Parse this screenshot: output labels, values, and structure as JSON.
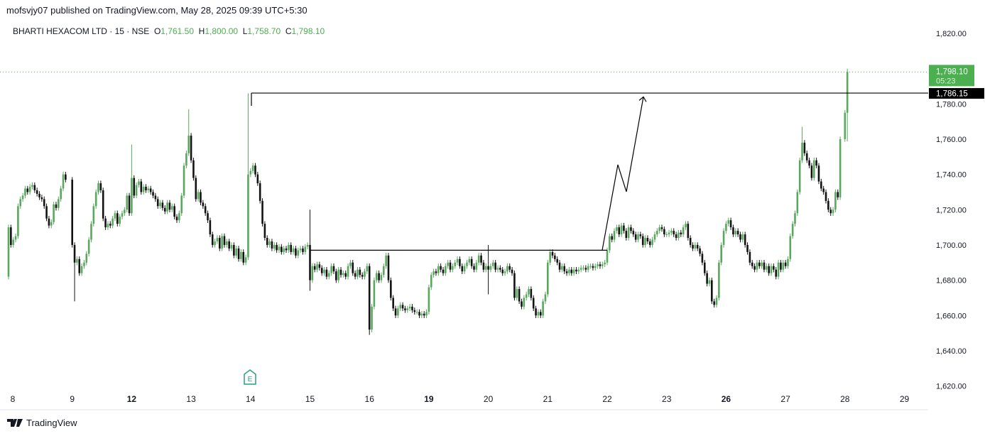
{
  "header": {
    "published": "mofsvjy07 published on TradingView.com, May 28, 2025 09:39 UTC+5:30"
  },
  "legend": {
    "symbol": "BHARTI HEXACOM LTD · 15 · NSE",
    "o_label": "O",
    "o": "1,761.50",
    "h_label": "H",
    "h": "1,800.00",
    "l_label": "L",
    "l": "1,758.70",
    "c_label": "C",
    "c": "1,798.10"
  },
  "footer": {
    "brand": "TradingView"
  },
  "colors": {
    "up": "#5aa85e",
    "down": "#131313",
    "last_price": "#4caf50"
  },
  "chart_data": {
    "type": "candlestick",
    "interval": "15",
    "yticks": [
      1620,
      1640,
      1660,
      1680,
      1700,
      1720,
      1740,
      1760,
      1780,
      1800,
      1820
    ],
    "ytick_labels": [
      "1,620.00",
      "1,640.00",
      "1,660.00",
      "1,680.00",
      "1,700.00",
      "1,720.00",
      "1,740.00",
      "1,760.00",
      "1,780.00",
      "1,800.00",
      "1,820.00"
    ],
    "ylim": [
      1620,
      1825
    ],
    "x_labels": [
      {
        "t": "8",
        "bold": false
      },
      {
        "t": "9",
        "bold": false
      },
      {
        "t": "12",
        "bold": true
      },
      {
        "t": "13",
        "bold": false
      },
      {
        "t": "14",
        "bold": false
      },
      {
        "t": "15",
        "bold": false
      },
      {
        "t": "16",
        "bold": false
      },
      {
        "t": "19",
        "bold": true
      },
      {
        "t": "20",
        "bold": false
      },
      {
        "t": "21",
        "bold": false
      },
      {
        "t": "22",
        "bold": false
      },
      {
        "t": "23",
        "bold": false
      },
      {
        "t": "26",
        "bold": true
      },
      {
        "t": "27",
        "bold": false
      },
      {
        "t": "28",
        "bold": false
      },
      {
        "t": "29",
        "bold": false
      }
    ],
    "first_open": 1682,
    "days_closes": [
      [
        1710,
        1700,
        1703,
        1705,
        1722,
        1726,
        1728,
        1732,
        1730,
        1733,
        1734,
        1731,
        1729,
        1727,
        1726,
        1722,
        1715,
        1711,
        1713,
        1723,
        1721,
        1726,
        1732,
        1740,
        1737
      ],
      [
        1700,
        1690,
        1692,
        1684,
        1688,
        1690,
        1695,
        1703,
        1712,
        1722,
        1730,
        1735,
        1731,
        1715,
        1710,
        1712,
        1711,
        1715,
        1718,
        1712,
        1716,
        1718,
        1720,
        1728,
        1718
      ],
      [
        1738,
        1728,
        1734,
        1736,
        1730,
        1733,
        1731,
        1732,
        1730,
        1728,
        1726,
        1722,
        1724,
        1721,
        1719,
        1724,
        1720,
        1722,
        1716,
        1714,
        1718,
        1728,
        1745,
        1752,
        1762
      ],
      [
        1748,
        1738,
        1726,
        1730,
        1724,
        1722,
        1718,
        1714,
        1706,
        1700,
        1702,
        1704,
        1698,
        1705,
        1700,
        1702,
        1698,
        1700,
        1694,
        1698,
        1692,
        1696,
        1690,
        1693,
        1740
      ],
      [
        1742,
        1745,
        1740,
        1735,
        1725,
        1712,
        1704,
        1700,
        1702,
        1698,
        1700,
        1697,
        1699,
        1696,
        1698,
        1697,
        1700,
        1696,
        1698,
        1694,
        1697,
        1698,
        1696,
        1699,
        1700
      ],
      [
        1680,
        1688,
        1686,
        1689,
        1687,
        1684,
        1686,
        1682,
        1684,
        1688,
        1685,
        1680,
        1686,
        1683,
        1684,
        1682,
        1688,
        1690,
        1684,
        1682,
        1686,
        1683,
        1682,
        1685,
        1688
      ],
      [
        1652,
        1665,
        1680,
        1684,
        1680,
        1683,
        1688,
        1694,
        1680,
        1670,
        1664,
        1660,
        1664,
        1666,
        1664,
        1663,
        1664,
        1665,
        1663,
        1662,
        1662,
        1660,
        1661,
        1660,
        1662
      ],
      [
        1676,
        1683,
        1685,
        1684,
        1688,
        1686,
        1684,
        1688,
        1690,
        1686,
        1688,
        1690,
        1692,
        1688,
        1685,
        1688,
        1690,
        1692,
        1688,
        1686,
        1690,
        1694,
        1690,
        1686,
        1688
      ],
      [
        1686,
        1688,
        1690,
        1686,
        1687,
        1686,
        1684,
        1685,
        1688,
        1686,
        1684,
        1670,
        1675,
        1668,
        1665,
        1670,
        1672,
        1675,
        1670,
        1664,
        1660,
        1662,
        1660,
        1668,
        1672
      ],
      [
        1690,
        1696,
        1694,
        1692,
        1690,
        1686,
        1688,
        1685,
        1684,
        1686,
        1684,
        1686,
        1685,
        1686,
        1687,
        1687,
        1686,
        1688,
        1688,
        1687,
        1688,
        1689,
        1688,
        1689,
        1690
      ],
      [
        1697,
        1705,
        1703,
        1708,
        1710,
        1706,
        1711,
        1708,
        1704,
        1710,
        1708,
        1706,
        1703,
        1706,
        1705,
        1700,
        1704,
        1702,
        1700,
        1703,
        1706,
        1708,
        1710,
        1709,
        1706
      ],
      [
        1706,
        1707,
        1708,
        1706,
        1704,
        1707,
        1706,
        1710,
        1712,
        1704,
        1700,
        1698,
        1700,
        1698,
        1695,
        1690,
        1684,
        1678,
        1680,
        1668,
        1666,
        1670,
        1690,
        1700,
        1708
      ],
      [
        1712,
        1714,
        1710,
        1706,
        1708,
        1706,
        1703,
        1706,
        1700,
        1696,
        1690,
        1688,
        1686,
        1690,
        1688,
        1690,
        1686,
        1688,
        1684,
        1688,
        1686,
        1682,
        1690,
        1686,
        1690
      ],
      [
        1688,
        1692,
        1705,
        1712,
        1718,
        1730,
        1748,
        1758,
        1752,
        1748,
        1745,
        1738,
        1748,
        1745,
        1736,
        1732,
        1730,
        1725,
        1720,
        1718,
        1720,
        1730,
        1727,
        1760
      ],
      [
        1775,
        1798.1
      ]
    ],
    "spikes": [
      {
        "day": 3,
        "i": 24,
        "high": 1786
      },
      {
        "day": 2,
        "i": 24,
        "high": 1777
      },
      {
        "day": 2,
        "i": 0,
        "high": 1757
      },
      {
        "day": 1,
        "i": 1,
        "low": 1668
      },
      {
        "day": 5,
        "i": 0,
        "high": 1720,
        "low": 1674
      },
      {
        "day": 6,
        "i": 0,
        "low": 1649
      },
      {
        "day": 8,
        "i": 0,
        "high": 1700,
        "low": 1672
      },
      {
        "day": 13,
        "i": 7,
        "high": 1767
      },
      {
        "day": 14,
        "i": 1,
        "high": 1800,
        "low": 1758.7
      }
    ],
    "drawings": {
      "resistance": 1786.15,
      "range_top": 1697,
      "path_prices": [
        1697,
        1745.5,
        1730.2,
        1784
      ]
    },
    "last_price": {
      "value": "1,798.10",
      "countdown": "05:23"
    },
    "level_label": "1,786.15",
    "earnings_marker": "E"
  }
}
